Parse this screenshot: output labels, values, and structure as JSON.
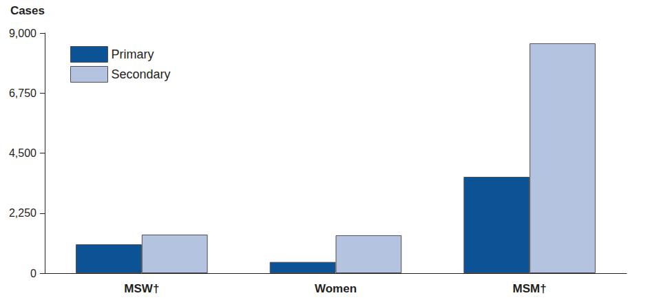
{
  "chart_data": {
    "type": "bar",
    "y_label": "Cases",
    "categories": [
      "MSW†",
      "Women",
      "MSM†"
    ],
    "series": [
      {
        "name": "Primary",
        "color": "#0b5394",
        "values": [
          1080,
          420,
          3610
        ]
      },
      {
        "name": "Secondary",
        "color": "#b4c3df",
        "values": [
          1445,
          1420,
          8615
        ]
      }
    ],
    "ylim": [
      0,
      9000
    ],
    "yticks": [
      0,
      2250,
      4500,
      6750,
      9000
    ],
    "grid": false,
    "legend": "upper left"
  }
}
